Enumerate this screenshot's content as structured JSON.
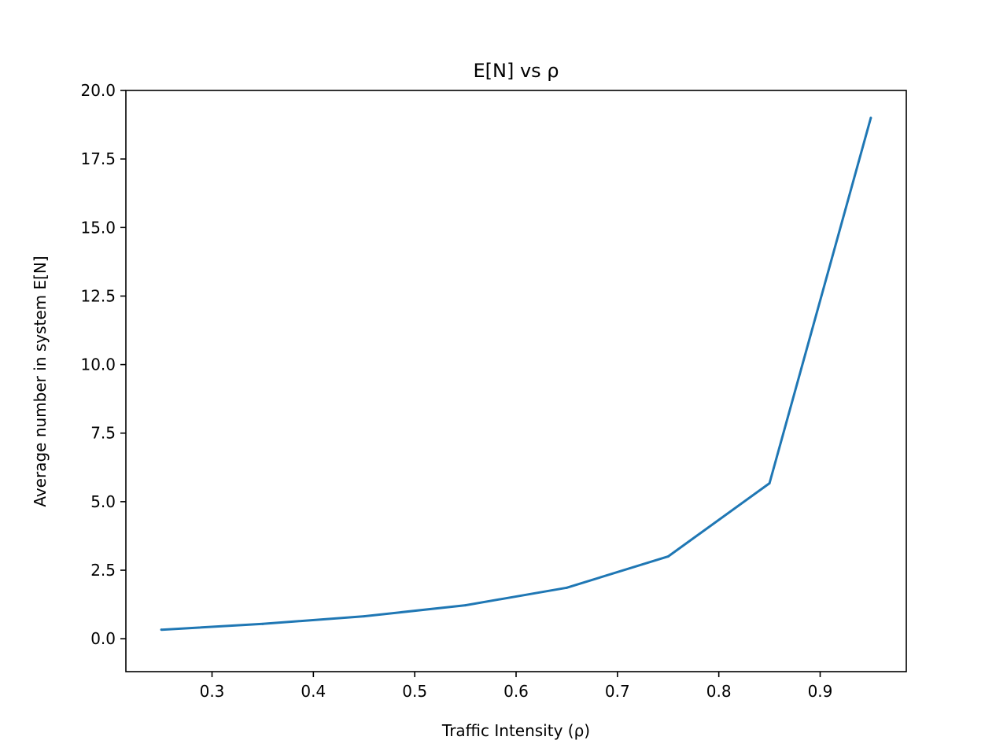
{
  "chart_data": {
    "type": "line",
    "title": "E[N] vs ρ",
    "xlabel": "Traffic Intensity (ρ)",
    "ylabel": "Average number in system E[N]",
    "xlim": [
      0.215,
      0.985
    ],
    "ylim": [
      -1.2,
      20.0
    ],
    "xticks": [
      0.3,
      0.4,
      0.5,
      0.6,
      0.7,
      0.8,
      0.9
    ],
    "xtick_labels": [
      "0.3",
      "0.4",
      "0.5",
      "0.6",
      "0.7",
      "0.8",
      "0.9"
    ],
    "yticks": [
      0.0,
      2.5,
      5.0,
      7.5,
      10.0,
      12.5,
      15.0,
      17.5,
      20.0
    ],
    "ytick_labels": [
      "0.0",
      "2.5",
      "5.0",
      "7.5",
      "10.0",
      "12.5",
      "15.0",
      "17.5",
      "20.0"
    ],
    "grid": false,
    "series": [
      {
        "color": "#1f77b4",
        "x": [
          0.25,
          0.35,
          0.45,
          0.55,
          0.65,
          0.75,
          0.85,
          0.95
        ],
        "y": [
          0.33,
          0.54,
          0.82,
          1.22,
          1.86,
          3.0,
          5.67,
          19.0
        ]
      }
    ]
  }
}
